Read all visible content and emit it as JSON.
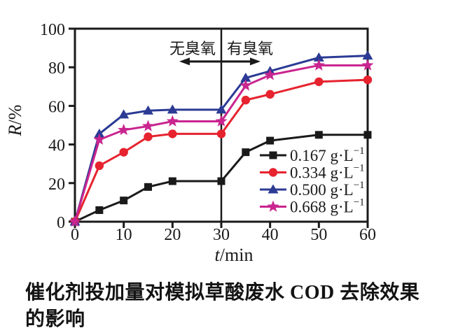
{
  "figure": {
    "caption": "催化剂投加量对模拟草酸废水 COD 去除效果的影响"
  },
  "chart_data": {
    "type": "line",
    "x": [
      0,
      5,
      10,
      15,
      20,
      30,
      35,
      40,
      50,
      60
    ],
    "series": [
      {
        "name": "0.167 g·L⁻¹",
        "legend_base": "0.167 g·L",
        "legend_sup": "−1",
        "color": "#1a1a1a",
        "marker": "square",
        "values": [
          0,
          6,
          11,
          18,
          21,
          21,
          36,
          42,
          45,
          45
        ]
      },
      {
        "name": "0.334 g·L⁻¹",
        "legend_base": "0.334 g·L",
        "legend_sup": "−1",
        "color": "#e6232e",
        "marker": "circle",
        "values": [
          0,
          29,
          36,
          44,
          45.5,
          45.5,
          63,
          66,
          72.5,
          73.5
        ]
      },
      {
        "name": "0.500 g·L⁻¹",
        "legend_base": "0.500 g·L",
        "legend_sup": "−1",
        "color": "#2b3a94",
        "marker": "triangle",
        "values": [
          0,
          45.5,
          55.5,
          57.5,
          58,
          58,
          74.5,
          78,
          85,
          86
        ]
      },
      {
        "name": "0.668 g·L⁻¹",
        "legend_base": "0.668 g·L",
        "legend_sup": "−1",
        "color": "#c9258f",
        "marker": "star",
        "values": [
          0,
          42.5,
          47.5,
          49.5,
          52,
          52,
          70.5,
          76,
          81,
          81
        ]
      }
    ],
    "xlabel": {
      "var": "t",
      "rest": "/min"
    },
    "ylabel": {
      "var": "R",
      "rest": "/%"
    },
    "xlim": [
      0,
      60
    ],
    "ylim": [
      0,
      100
    ],
    "xticks": [
      0,
      10,
      20,
      30,
      40,
      50,
      60
    ],
    "yticks": [
      0,
      20,
      40,
      60,
      80,
      100
    ],
    "grid": false,
    "legend_position": "lower-right",
    "axis_color": "#1a1a1a",
    "annotation": {
      "divider_x": 30,
      "arrow_R": 83,
      "left_text": "无臭氧",
      "right_text": "有臭氧"
    }
  }
}
